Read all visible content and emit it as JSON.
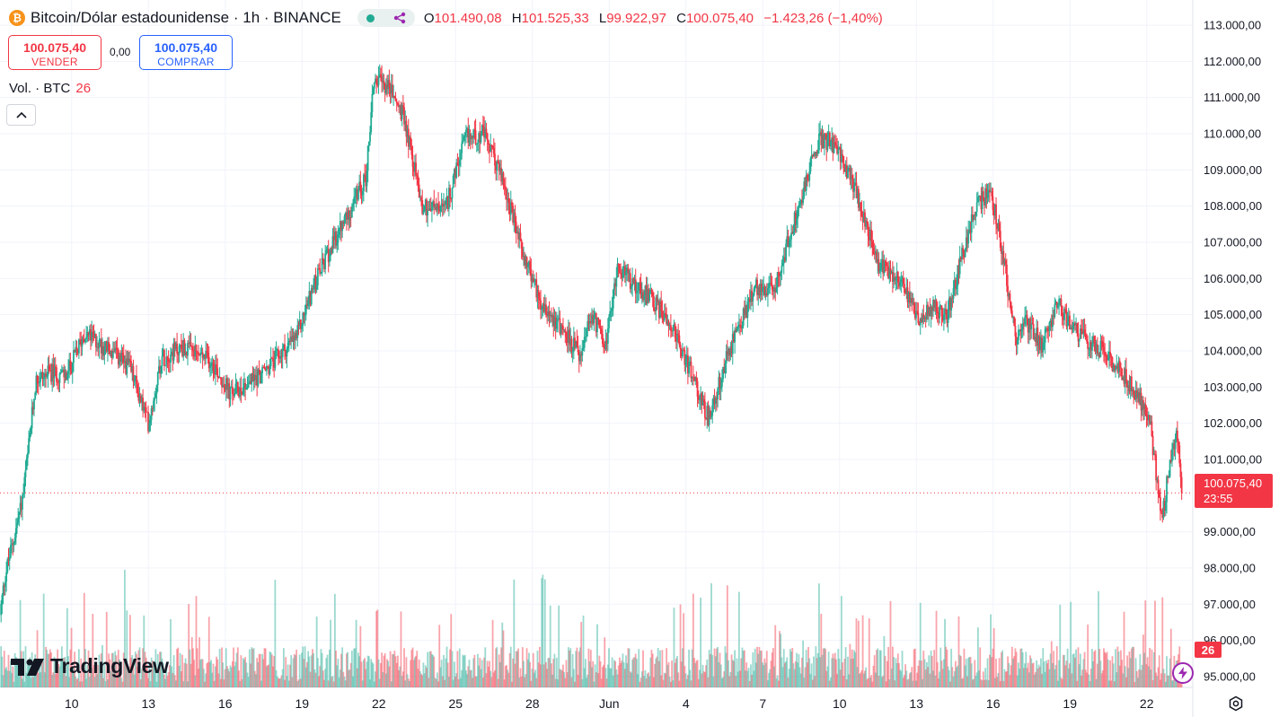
{
  "header": {
    "coin_icon": "bitcoin-icon",
    "title": "Bitcoin/Dólar estadounidense · 1h · BINANCE",
    "ohlc": [
      {
        "k": "O",
        "v": "101.490,08"
      },
      {
        "k": "H",
        "v": "101.525,33"
      },
      {
        "k": "L",
        "v": "99.922,97"
      },
      {
        "k": "C",
        "v": "100.075,40"
      }
    ],
    "change": "−1.423,26 (−1,40%)"
  },
  "trade": {
    "sell_price": "100.075,40",
    "sell_label": "VENDER",
    "spread": "0,00",
    "buy_price": "100.075,40",
    "buy_label": "COMPRAR"
  },
  "volume_legend": {
    "label": "Vol. · BTC",
    "value": "26"
  },
  "brand": "TradingView",
  "price_label": {
    "price": "100.075,40",
    "countdown": "23:55"
  },
  "volume_label": "26",
  "colors": {
    "up": "#22ab94",
    "down": "#f23645",
    "buy": "#2962ff",
    "grid": "#f0f3fa",
    "accent": "#9c27b0"
  },
  "chart_data": {
    "type": "candlestick",
    "y_tick_labels": [
      "113.000,00",
      "112.000,00",
      "111.000,00",
      "110.000,00",
      "109.000,00",
      "108.000,00",
      "107.000,00",
      "106.000,00",
      "105.000,00",
      "104.000,00",
      "103.000,00",
      "102.000,00",
      "101.000,00",
      "99.000,00",
      "98.000,00",
      "97.000,00",
      "96.000,00",
      "95.000,00"
    ],
    "y_tick_values": [
      113000,
      112000,
      111000,
      110000,
      109000,
      108000,
      107000,
      106000,
      105000,
      104000,
      103000,
      102000,
      101000,
      99000,
      98000,
      97000,
      96000,
      95000
    ],
    "ylim": [
      94700,
      113250
    ],
    "x_tick_labels": [
      "10",
      "13",
      "16",
      "19",
      "22",
      "25",
      "28",
      "Jun",
      "4",
      "7",
      "10",
      "13",
      "16",
      "19",
      "22"
    ],
    "x_tick_days": [
      3,
      6,
      9,
      12,
      15,
      18,
      21,
      24,
      27,
      30,
      33,
      36,
      39,
      42,
      45
    ],
    "xlim_days": [
      0.2,
      46.8
    ],
    "last_price": 100075.4,
    "path_days": [
      0.2,
      0.4,
      0.8,
      1.1,
      1.3,
      1.6,
      2.2,
      2.8,
      3.5,
      4.5,
      5.3,
      6.0,
      6.5,
      7.3,
      8.5,
      9.2,
      10.5,
      11.8,
      12.4,
      12.9,
      13.6,
      14.5,
      14.8,
      15.4,
      16.0,
      16.7,
      17.6,
      18.4,
      19.1,
      19.8,
      20.5,
      21.3,
      22.2,
      22.9,
      23.3,
      23.9,
      24.3,
      25.4,
      26.4,
      27.2,
      27.9,
      28.6,
      29.2,
      29.8,
      30.4,
      31.4,
      32.2,
      32.8,
      33.7,
      34.5,
      35.4,
      36.0,
      36.6,
      37.2,
      38.3,
      38.9,
      39.3,
      39.9,
      40.3,
      40.9,
      41.5,
      42.3,
      43.3,
      43.9,
      44.6,
      45.1,
      45.6,
      45.9,
      46.2,
      46.4
    ],
    "path_values": [
      96700,
      97800,
      99000,
      100000,
      101200,
      103200,
      103400,
      103300,
      104500,
      104000,
      103500,
      102000,
      103800,
      104100,
      103700,
      102800,
      103400,
      104400,
      105700,
      106500,
      107500,
      108800,
      111500,
      111300,
      110400,
      108000,
      107900,
      109900,
      110000,
      108800,
      107000,
      105400,
      104600,
      103800,
      105000,
      104200,
      106300,
      105600,
      104800,
      103400,
      102100,
      103800,
      104900,
      105800,
      105600,
      108000,
      109900,
      109700,
      108300,
      106400,
      106000,
      104900,
      105200,
      105000,
      108000,
      108400,
      107000,
      104300,
      104800,
      104200,
      105300,
      104500,
      104000,
      103500,
      102800,
      102200,
      99300,
      100900,
      101700,
      100075
    ]
  }
}
